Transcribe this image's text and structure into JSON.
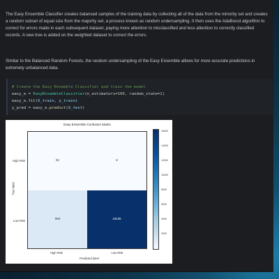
{
  "paragraphs": {
    "p1": "The Easy Ensemble Classifier creates balanced samples of the training data by collecting all of the data from the minority set and creates a random subset of equal size from the majority set, a process known as random undersampling. It then uses the AdaBoost algorithm to correct for errors made in each subsequent dataset, paying more attention to misclassified and less attention to correctly classified records. A new tree is added on the weighted dataset to correct the errors.",
    "p2": "Similar to the Balanced Random Forests, the random undersampling of the Easy Ensemble allows for more accurate predictions in extremely unbalanced data."
  },
  "code": {
    "comment": "# Create the Easy Ensemble Classifier and train the model",
    "line2_var": "easy_e",
    "line2_eq": " = ",
    "line2_cls": "EasyEnsembleClassifier",
    "line2_args_open": "(n_estimators=",
    "line2_n": "100",
    "line2_args_mid": ", random_state=",
    "line2_rs": "1",
    "line2_args_close": ")",
    "line3_obj": "easy_e.",
    "line3_fn": "fit",
    "line3_args": "(X_train, y_train)",
    "line4_var": "y_pred",
    "line4_eq": " = easy_e.",
    "line4_fn": "predict",
    "line4_args": "(X_test)"
  },
  "chart_data": {
    "type": "heatmap",
    "title": "Easy Ensemble Confusion Matrix",
    "xlabel": "Predicted label",
    "ylabel": "True label",
    "x_categories": [
      "High Risk",
      "Low Risk"
    ],
    "y_categories": [
      "High Risk",
      "Low Risk"
    ],
    "values": [
      [
        92,
        8
      ],
      [
        968,
        16136
      ]
    ],
    "value_labels": [
      [
        "92",
        "8"
      ],
      [
        "968",
        "16136"
      ]
    ],
    "colormap": "Blues",
    "colorbar_ticks": [
      "16000",
      "14000",
      "12000",
      "10000",
      "8000",
      "6000",
      "4000",
      "2000"
    ]
  },
  "colors": {
    "window_bg": "#1b1d20",
    "text": "#c9ced4",
    "code_bg": "#1f2227"
  }
}
